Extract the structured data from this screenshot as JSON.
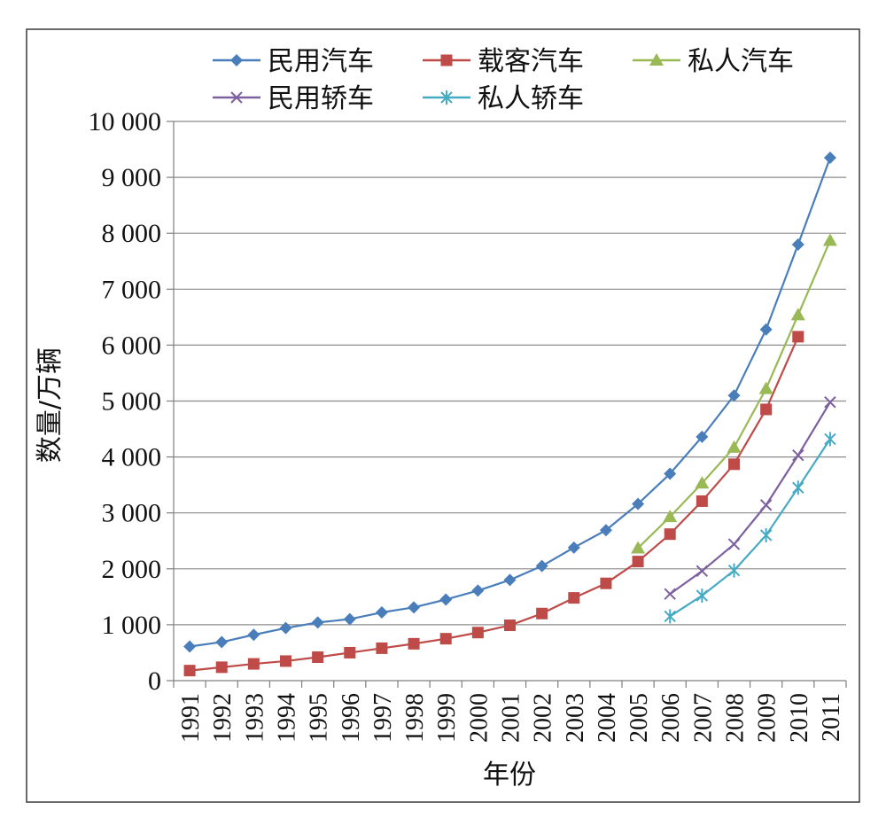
{
  "chart_data": {
    "type": "line",
    "title": "",
    "xlabel": "年份",
    "ylabel": "数量/万辆",
    "ylim": [
      0,
      10000
    ],
    "yticks": [
      0,
      1000,
      2000,
      3000,
      4000,
      5000,
      6000,
      7000,
      8000,
      9000,
      10000
    ],
    "ytick_labels": [
      "0",
      "1 000",
      "2 000",
      "3 000",
      "4 000",
      "5 000",
      "6 000",
      "7 000",
      "8 000",
      "9 000",
      "10 000"
    ],
    "categories": [
      "1991",
      "1992",
      "1993",
      "1994",
      "1995",
      "1996",
      "1997",
      "1998",
      "1999",
      "2000",
      "2001",
      "2002",
      "2003",
      "2004",
      "2005",
      "2006",
      "2007",
      "2008",
      "2009",
      "2010",
      "2011"
    ],
    "grid": true,
    "legend_position": "top",
    "series": [
      {
        "name": "民用汽车",
        "color": "#4a7ebb",
        "marker": "diamond",
        "values": [
          610,
          690,
          820,
          940,
          1040,
          1100,
          1220,
          1310,
          1450,
          1610,
          1800,
          2050,
          2380,
          2690,
          3160,
          3700,
          4360,
          5100,
          6280,
          7800,
          9350
        ]
      },
      {
        "name": "载客汽车",
        "color": "#be4b48",
        "marker": "square",
        "values": [
          180,
          240,
          300,
          350,
          420,
          500,
          580,
          660,
          750,
          860,
          990,
          1200,
          1480,
          1740,
          2130,
          2620,
          3210,
          3870,
          4850,
          6150,
          null
        ]
      },
      {
        "name": "私人汽车",
        "color": "#98b954",
        "marker": "triangle",
        "values": [
          null,
          null,
          null,
          null,
          null,
          null,
          null,
          null,
          null,
          null,
          null,
          null,
          null,
          null,
          2370,
          2930,
          3530,
          4170,
          5220,
          6540,
          7870
        ]
      },
      {
        "name": "民用轿车",
        "color": "#7d60a0",
        "marker": "x",
        "values": [
          null,
          null,
          null,
          null,
          null,
          null,
          null,
          null,
          null,
          null,
          null,
          null,
          null,
          null,
          null,
          1550,
          1960,
          2440,
          3140,
          4030,
          4980
        ]
      },
      {
        "name": "私人轿车",
        "color": "#46aac4",
        "marker": "star",
        "values": [
          null,
          null,
          null,
          null,
          null,
          null,
          null,
          null,
          null,
          null,
          null,
          null,
          null,
          null,
          null,
          1150,
          1520,
          1970,
          2600,
          3450,
          4320
        ]
      }
    ]
  }
}
